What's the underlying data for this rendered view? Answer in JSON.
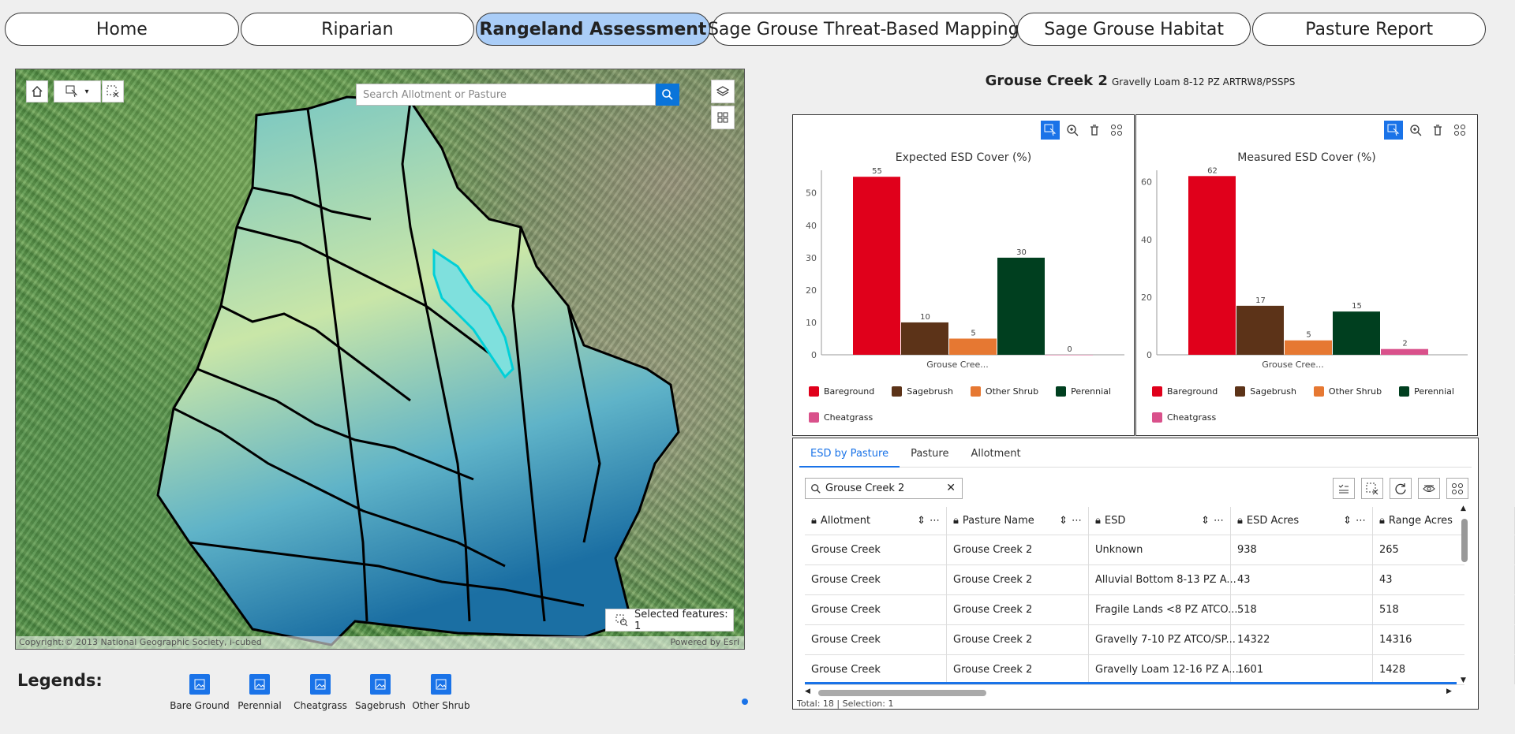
{
  "nav": {
    "tabs": [
      {
        "label": "Home",
        "active": false
      },
      {
        "label": "Riparian",
        "active": false
      },
      {
        "label": "Rangeland Assessment",
        "active": true
      },
      {
        "label": "Sage Grouse Threat-Based Mapping",
        "active": false
      },
      {
        "label": "Sage Grouse Habitat",
        "active": false
      },
      {
        "label": "Pasture Report",
        "active": false
      }
    ]
  },
  "map": {
    "search_placeholder": "Search Allotment or Pasture",
    "selected_features": "Selected features: 1",
    "attribution": "Copyright:© 2013 National Geographic Society, i-cubed",
    "powered_by": "Powered by Esri"
  },
  "legends": {
    "title": "Legends:",
    "items": [
      "Bare Ground",
      "Perennial",
      "Cheatgrass",
      "Sagebrush",
      "Other Shrub"
    ]
  },
  "pasture": {
    "name": "Grouse Creek 2",
    "esd": "Gravelly Loam 8-12 PZ ARTRW8/PSSPS"
  },
  "colors": {
    "accent": "#1a73e8",
    "bareground": "#e0001b",
    "sagebrush": "#5c3318",
    "other_shrub": "#e67832",
    "perennial": "#003f1f",
    "cheatgrass": "#d9518b"
  },
  "chart_data": [
    {
      "type": "bar",
      "title": "Expected ESD Cover (%)",
      "categories": [
        "Grouse Cree..."
      ],
      "series": [
        {
          "name": "Bareground",
          "values": [
            55
          ]
        },
        {
          "name": "Sagebrush",
          "values": [
            10
          ]
        },
        {
          "name": "Other Shrub",
          "values": [
            5
          ]
        },
        {
          "name": "Perennial",
          "values": [
            30
          ]
        },
        {
          "name": "Cheatgrass",
          "values": [
            0
          ]
        }
      ],
      "yticks": [
        0,
        10,
        20,
        30,
        40,
        50
      ],
      "ylim": [
        0,
        57
      ],
      "legend": "bottom"
    },
    {
      "type": "bar",
      "title": "Measured ESD Cover (%)",
      "categories": [
        "Grouse Cree..."
      ],
      "series": [
        {
          "name": "Bareground",
          "values": [
            62
          ]
        },
        {
          "name": "Sagebrush",
          "values": [
            17
          ]
        },
        {
          "name": "Other Shrub",
          "values": [
            5
          ]
        },
        {
          "name": "Perennial",
          "values": [
            15
          ]
        },
        {
          "name": "Cheatgrass",
          "values": [
            2
          ]
        }
      ],
      "yticks": [
        0,
        20,
        40,
        60
      ],
      "ylim": [
        0,
        64
      ],
      "legend": "bottom"
    }
  ],
  "table": {
    "tabs": [
      "ESD by Pasture",
      "Pasture",
      "Allotment"
    ],
    "search_value": "Grouse Creek 2",
    "columns": [
      "Allotment",
      "Pasture Name",
      "ESD",
      "ESD Acres",
      "Range Acres"
    ],
    "rows": [
      [
        "Grouse Creek",
        "Grouse Creek 2",
        "Unknown",
        "938",
        "265"
      ],
      [
        "Grouse Creek",
        "Grouse Creek 2",
        "Alluvial Bottom 8-13 PZ A...",
        "43",
        "43"
      ],
      [
        "Grouse Creek",
        "Grouse Creek 2",
        "Fragile Lands <8 PZ ATCO...",
        "518",
        "518"
      ],
      [
        "Grouse Creek",
        "Grouse Creek 2",
        "Gravelly 7-10 PZ ATCO/SP...",
        "14322",
        "14316"
      ],
      [
        "Grouse Creek",
        "Grouse Creek 2",
        "Gravelly Loam 12-16 PZ A...",
        "1601",
        "1428"
      ]
    ],
    "footer": "Total: 18 | Selection: 1"
  }
}
